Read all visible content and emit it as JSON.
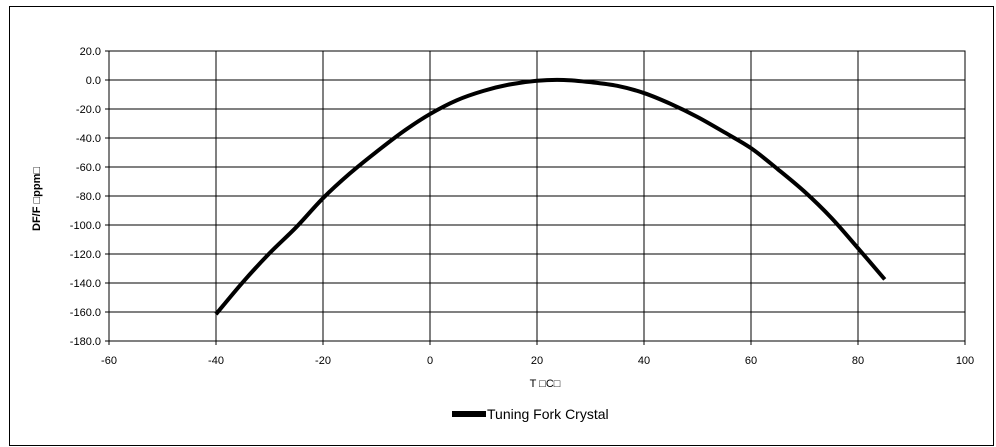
{
  "chart_data": {
    "type": "line",
    "title": "",
    "xlabel": "T □C□",
    "ylabel": "DF/F □ppm□",
    "xlim": [
      -60,
      100
    ],
    "ylim": [
      -180,
      20
    ],
    "x_ticks": [
      "-60",
      "-40",
      "-20",
      "0",
      "20",
      "40",
      "60",
      "80",
      "100"
    ],
    "y_ticks": [
      "20.0",
      "0.0",
      "-20.0",
      "-40.0",
      "-60.0",
      "-80.0",
      "-100.0",
      "-120.0",
      "-140.0",
      "-160.0",
      "-180.0"
    ],
    "grid": true,
    "legend_position": "bottom",
    "series": [
      {
        "name": "Tuning Fork Crystal",
        "color": "#000000",
        "x": [
          -40,
          -35,
          -30,
          -25,
          -20,
          -15,
          -10,
          -5,
          0,
          5,
          10,
          15,
          20,
          25,
          30,
          35,
          40,
          45,
          50,
          55,
          60,
          65,
          70,
          75,
          80,
          85
        ],
        "y": [
          -161.5,
          -139.5,
          -119.5,
          -101.5,
          -81.5,
          -64.5,
          -49.5,
          -35.5,
          -23.5,
          -14.0,
          -7.5,
          -3.0,
          -0.5,
          0.0,
          -1.5,
          -4.0,
          -9.0,
          -16.5,
          -25.5,
          -36.0,
          -47.0,
          -61.5,
          -77.0,
          -95.0,
          -116.0,
          -137.5
        ]
      }
    ]
  }
}
